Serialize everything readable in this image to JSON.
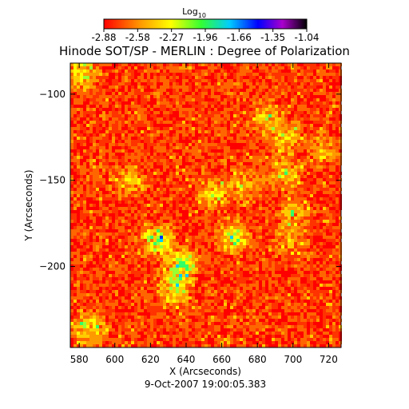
{
  "colorbar": {
    "label_main": "Log",
    "label_sub": "10",
    "ticks": [
      "-2.88",
      "-2.58",
      "-2.27",
      "-1.96",
      "-1.66",
      "-1.35",
      "-1.04"
    ],
    "colors": [
      "#ff0000",
      "#ff9900",
      "#ffff00",
      "#33ff33",
      "#00ccff",
      "#0000ff",
      "#aa00cc",
      "#000000"
    ]
  },
  "chart_data": {
    "type": "heatmap",
    "title": "Hinode SOT/SP - MERLIN : Degree of Polarization",
    "xlabel": "X (Arcseconds)",
    "ylabel": "Y (Arcseconds)",
    "xlim": [
      575,
      727
    ],
    "ylim": [
      -247,
      -82
    ],
    "xticks": [
      580,
      600,
      620,
      640,
      660,
      680,
      700,
      720
    ],
    "yticks": [
      -100,
      -150,
      -200
    ],
    "colorscale_range": [
      -2.88,
      -1.04
    ],
    "timestamp": "9-Oct-2007 19:00:05.383"
  }
}
